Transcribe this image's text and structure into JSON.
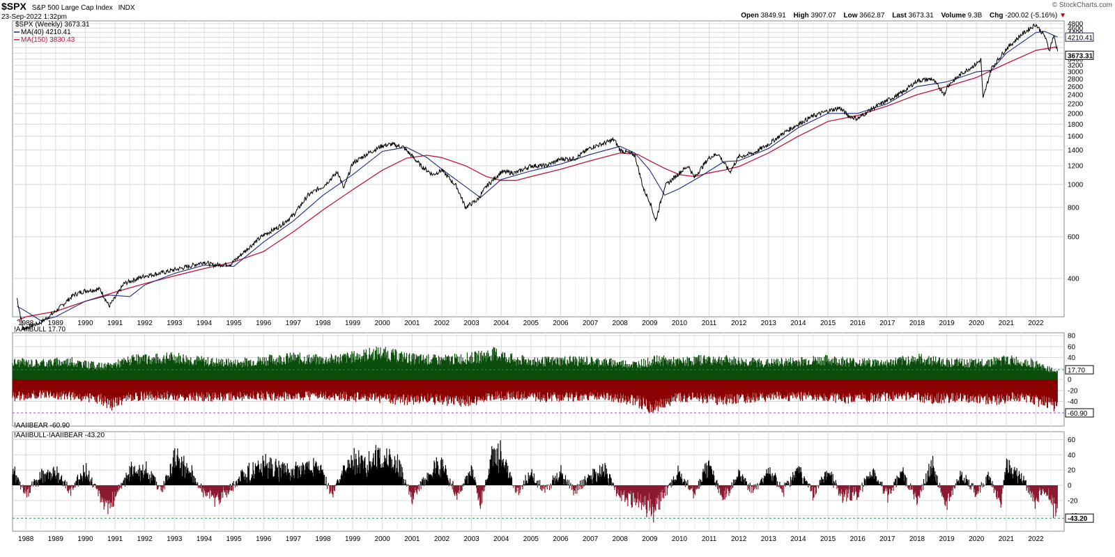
{
  "header": {
    "symbol": "$SPX",
    "description": "S&P 500 Large Cap Index",
    "exchange": "INDX",
    "datetime": "23-Sep-2022 1:32pm",
    "watermark": "© StockCharts.com",
    "open_label": "Open",
    "open": "3849.91",
    "high_label": "High",
    "high": "3907.07",
    "low_label": "Low",
    "low": "3662.87",
    "last_label": "Last",
    "last": "3673.31",
    "volume_label": "Volume",
    "volume": "9.3B",
    "chg_label": "Chg",
    "chg": "-200.02 (-5.16%)",
    "chg_arrow": "▼"
  },
  "colors": {
    "price": "#000000",
    "ma40": "#1f2a80",
    "ma150": "#c0143c",
    "bull": "#0b4d0b",
    "bear": "#8b0000",
    "spread_pos": "#000000",
    "spread_neg": "#8b1a30",
    "grid": "#d8d8d8",
    "bull_ref": "#2e8b57",
    "bear_ref": "#8a4fd0",
    "spread_ref": "#2e8b57"
  },
  "chart_data": [
    {
      "type": "line",
      "panel": "price",
      "legend": [
        {
          "label": "$SPX (Weekly) 3673.31"
        },
        {
          "label": "MA(40) 4210.41"
        },
        {
          "label": "MA(150) 3830.43"
        }
      ],
      "y_scale": "log",
      "ylim": [
        275,
        4800
      ],
      "y_ticks": [
        400,
        600,
        800,
        1000,
        1200,
        1400,
        1600,
        1800,
        2000,
        2200,
        2400,
        2600,
        2800,
        3000,
        3200,
        3400,
        3600,
        3800,
        4000,
        4200,
        4400,
        4600,
        4800
      ],
      "y_tick_labels_visible": [
        400,
        600,
        800,
        1000,
        1200,
        1400,
        1600,
        1800,
        2000,
        2200,
        2400,
        2600,
        2800,
        3000,
        3200,
        3400,
        4200,
        4400,
        4600,
        4800
      ],
      "x_labels": [
        "1988",
        "1989",
        "1990",
        "1991",
        "1992",
        "1993",
        "1994",
        "1995",
        "1996",
        "1997",
        "1998",
        "1999",
        "2000",
        "2001",
        "2002",
        "2003",
        "2004",
        "2005",
        "2006",
        "2007",
        "2008",
        "2009",
        "2010",
        "2011",
        "2012",
        "2013",
        "2014",
        "2015",
        "2016",
        "2017",
        "2018",
        "2019",
        "2020",
        "2021",
        "2022"
      ],
      "series": [
        {
          "key": "price",
          "x": [
            1987.7,
            1987.9,
            1988.5,
            1989.0,
            1989.6,
            1990.0,
            1990.5,
            1990.8,
            1991.0,
            1991.3,
            1992.0,
            1992.5,
            1993.0,
            1993.5,
            1994.0,
            1994.3,
            1994.9,
            1995.5,
            1996.0,
            1996.5,
            1997.0,
            1997.5,
            1997.8,
            1998.0,
            1998.5,
            1998.7,
            1999.0,
            1999.5,
            2000.0,
            2000.3,
            2000.7,
            2001.0,
            2001.3,
            2001.7,
            2002.0,
            2002.5,
            2002.8,
            2003.2,
            2003.5,
            2004.0,
            2004.5,
            2005.0,
            2005.5,
            2006.0,
            2006.5,
            2007.0,
            2007.5,
            2007.8,
            2008.0,
            2008.5,
            2008.8,
            2009.0,
            2009.2,
            2009.5,
            2010.0,
            2010.3,
            2010.5,
            2011.0,
            2011.3,
            2011.7,
            2012.0,
            2012.5,
            2013.0,
            2013.5,
            2014.0,
            2014.5,
            2015.0,
            2015.4,
            2015.7,
            2016.0,
            2016.5,
            2017.0,
            2017.5,
            2018.0,
            2018.5,
            2018.95,
            2019.0,
            2019.5,
            2020.0,
            2020.15,
            2020.22,
            2020.5,
            2021.0,
            2021.5,
            2021.99,
            2022.3,
            2022.45,
            2022.6,
            2022.73
          ],
          "y": [
            330,
            245,
            260,
            290,
            340,
            355,
            360,
            305,
            330,
            380,
            410,
            420,
            435,
            450,
            470,
            455,
            460,
            540,
            610,
            660,
            740,
            900,
            950,
            980,
            1130,
            960,
            1230,
            1350,
            1460,
            1480,
            1440,
            1320,
            1200,
            1100,
            1150,
            980,
            800,
            860,
            980,
            1130,
            1120,
            1200,
            1200,
            1280,
            1290,
            1430,
            1500,
            1550,
            1400,
            1330,
            950,
            850,
            700,
            980,
            1120,
            1200,
            1070,
            1300,
            1350,
            1130,
            1310,
            1360,
            1480,
            1650,
            1800,
            1950,
            2050,
            2110,
            1950,
            1900,
            2100,
            2270,
            2450,
            2750,
            2800,
            2400,
            2600,
            2950,
            3250,
            3380,
            2300,
            3100,
            3750,
            4300,
            4770,
            4250,
            3700,
            4280,
            3673
          ]
        },
        {
          "key": "ma40",
          "x": [
            1987.7,
            1988.0,
            1988.5,
            1989.0,
            1990.0,
            1990.8,
            1991.5,
            1992.0,
            1993.0,
            1994.0,
            1995.0,
            1996.0,
            1997.0,
            1998.0,
            1999.0,
            2000.0,
            2000.8,
            2001.5,
            2002.0,
            2002.7,
            2003.3,
            2004.0,
            2005.0,
            2006.0,
            2007.0,
            2008.0,
            2008.5,
            2009.0,
            2009.5,
            2010.0,
            2010.7,
            2011.5,
            2012.0,
            2013.0,
            2014.0,
            2015.0,
            2016.0,
            2017.0,
            2018.0,
            2019.0,
            2020.0,
            2020.5,
            2021.0,
            2022.0,
            2022.3,
            2022.73
          ],
          "y": [
            305,
            290,
            265,
            275,
            320,
            340,
            335,
            375,
            420,
            455,
            450,
            570,
            700,
            900,
            1100,
            1380,
            1440,
            1300,
            1160,
            1000,
            880,
            1050,
            1140,
            1220,
            1340,
            1450,
            1360,
            1150,
            900,
            960,
            1080,
            1250,
            1260,
            1420,
            1740,
            2000,
            2000,
            2200,
            2600,
            2720,
            3000,
            3050,
            3600,
            4400,
            4450,
            4210
          ]
        },
        {
          "key": "ma150",
          "x": [
            1987.7,
            1988.0,
            1989.0,
            1990.0,
            1991.0,
            1992.0,
            1993.0,
            1994.0,
            1995.0,
            1996.0,
            1997.0,
            1998.0,
            1999.0,
            2000.0,
            2000.8,
            2001.5,
            2002.0,
            2002.8,
            2003.5,
            2004.0,
            2004.5,
            2005.0,
            2006.0,
            2007.0,
            2008.0,
            2008.6,
            2009.0,
            2009.5,
            2010.0,
            2010.5,
            2011.0,
            2011.5,
            2012.0,
            2013.0,
            2014.0,
            2015.0,
            2016.0,
            2017.0,
            2018.0,
            2019.0,
            2020.0,
            2021.0,
            2022.0,
            2022.73
          ],
          "y": [
            265,
            275,
            290,
            320,
            350,
            380,
            410,
            440,
            470,
            520,
            630,
            780,
            950,
            1150,
            1290,
            1330,
            1300,
            1200,
            1080,
            1040,
            1040,
            1080,
            1160,
            1260,
            1360,
            1340,
            1260,
            1170,
            1100,
            1080,
            1120,
            1150,
            1190,
            1360,
            1600,
            1850,
            1960,
            2150,
            2400,
            2600,
            2840,
            3250,
            3700,
            3830
          ]
        }
      ]
    },
    {
      "type": "bar",
      "panel": "sentiment",
      "legend": [
        {
          "label": "!AAIIBULL 17.70"
        },
        {
          "label": "!AAIIBEAR -60.90"
        }
      ],
      "ylim": [
        -80,
        80
      ],
      "y_ticks": [
        -40,
        -20,
        0,
        20,
        40,
        60,
        80
      ],
      "y_tick_labels_visible": [
        -40,
        -20,
        0,
        20,
        40,
        60,
        80
      ],
      "last_bull": 17.7,
      "last_bear": -60.9,
      "x_start": 1987.55,
      "x_end": 2022.73,
      "bull_envelope_x": [
        1987.6,
        1988.5,
        1989.5,
        1990.0,
        1990.7,
        1991.5,
        1992.5,
        1993.0,
        1994.0,
        1995.0,
        1996.0,
        1997.0,
        1998.0,
        1999.0,
        1999.9,
        2001.0,
        2002.0,
        2003.0,
        2003.8,
        2004.5,
        2005.5,
        2006.5,
        2007.5,
        2008.5,
        2009.3,
        2010.0,
        2011.0,
        2012.0,
        2013.0,
        2014.0,
        2015.0,
        2016.0,
        2017.0,
        2018.0,
        2019.0,
        2020.0,
        2021.0,
        2021.8,
        2022.4,
        2022.73
      ],
      "bull_envelope_y": [
        40,
        38,
        42,
        35,
        30,
        45,
        48,
        52,
        42,
        38,
        45,
        50,
        45,
        52,
        62,
        48,
        45,
        50,
        60,
        45,
        42,
        45,
        40,
        35,
        45,
        40,
        48,
        42,
        38,
        42,
        45,
        40,
        38,
        48,
        40,
        38,
        45,
        40,
        25,
        18
      ],
      "bear_envelope_x": [
        1987.6,
        1988.5,
        1989.5,
        1990.5,
        1990.9,
        1991.5,
        1992.5,
        1993.5,
        1994.5,
        1995.5,
        1996.5,
        1997.5,
        1998.5,
        1999.5,
        2000.5,
        2001.5,
        2002.5,
        2003.0,
        2003.5,
        2004.5,
        2005.5,
        2006.5,
        2007.5,
        2008.5,
        2009.15,
        2009.8,
        2010.5,
        2011.5,
        2012.5,
        2013.5,
        2014.5,
        2015.5,
        2016.5,
        2017.5,
        2018.5,
        2019.5,
        2020.5,
        2021.5,
        2022.2,
        2022.73
      ],
      "bear_envelope_y": [
        -40,
        -35,
        -38,
        -45,
        -58,
        -40,
        -38,
        -40,
        -42,
        -38,
        -40,
        -38,
        -40,
        -42,
        -48,
        -45,
        -52,
        -50,
        -40,
        -38,
        -42,
        -40,
        -38,
        -50,
        -65,
        -45,
        -42,
        -48,
        -42,
        -40,
        -40,
        -45,
        -42,
        -38,
        -45,
        -42,
        -48,
        -40,
        -52,
        -60.9
      ]
    },
    {
      "type": "bar",
      "panel": "spread",
      "legend": [
        {
          "label": "!AAIIBULL-!AAIIBEAR -43.20"
        }
      ],
      "ylim": [
        -50,
        65
      ],
      "y_ticks": [
        -40,
        -20,
        0,
        20,
        40,
        60
      ],
      "y_tick_labels_visible": [
        -40,
        -20,
        0,
        20,
        40,
        60
      ],
      "last": -43.2,
      "x_start": 1987.55,
      "x_end": 2022.73,
      "envelope_x": [
        1987.6,
        1988.0,
        1988.5,
        1989.0,
        1989.5,
        1990.0,
        1990.4,
        1990.8,
        1991.0,
        1991.5,
        1992.0,
        1992.6,
        1993.0,
        1993.5,
        1994.0,
        1994.4,
        1994.8,
        1995.3,
        1996.0,
        1997.0,
        1997.8,
        1998.3,
        1998.7,
        1999.0,
        1999.5,
        2000.0,
        2000.5,
        2001.0,
        2001.5,
        2002.0,
        2002.5,
        2003.0,
        2003.3,
        2003.7,
        2004.0,
        2004.5,
        2005.0,
        2005.5,
        2006.0,
        2006.5,
        2007.0,
        2007.5,
        2008.0,
        2008.5,
        2009.0,
        2009.15,
        2009.5,
        2010.0,
        2010.5,
        2011.0,
        2011.5,
        2012.0,
        2012.5,
        2013.0,
        2013.5,
        2014.0,
        2014.5,
        2015.0,
        2015.5,
        2016.0,
        2016.5,
        2017.0,
        2017.5,
        2018.0,
        2018.5,
        2019.0,
        2019.5,
        2020.0,
        2020.4,
        2020.8,
        2021.0,
        2021.5,
        2022.0,
        2022.3,
        2022.6,
        2022.73
      ],
      "envelope_y": [
        25,
        -15,
        20,
        25,
        -12,
        28,
        -15,
        -45,
        -20,
        25,
        28,
        -8,
        50,
        30,
        -15,
        -25,
        -15,
        20,
        35,
        28,
        40,
        -15,
        25,
        50,
        45,
        55,
        40,
        -22,
        15,
        45,
        -18,
        30,
        -35,
        55,
        60,
        -15,
        20,
        -10,
        25,
        -12,
        22,
        25,
        -20,
        -30,
        -40,
        -48,
        -15,
        25,
        -15,
        40,
        -30,
        20,
        -15,
        28,
        -10,
        30,
        -15,
        25,
        -20,
        -15,
        25,
        -18,
        20,
        -25,
        38,
        -35,
        22,
        -18,
        18,
        -35,
        35,
        15,
        -30,
        -10,
        -40,
        -43.2
      ]
    }
  ]
}
